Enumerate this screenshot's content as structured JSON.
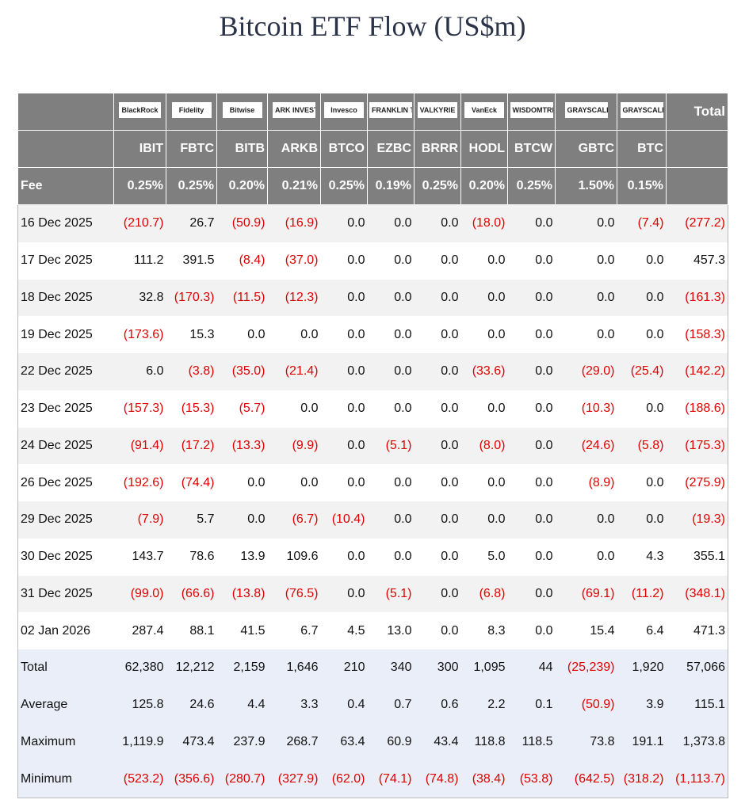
{
  "title": "Bitcoin ETF Flow (US$m)",
  "table": {
    "logos": [
      "BlackRock",
      "Fidelity",
      "Bitwise",
      "ARK INVEST",
      "Invesco",
      "FRANKLIN TEMPLETON",
      "VALKYRIE",
      "VanEck",
      "WISDOMTREE",
      "GRAYSCALE",
      "GRAYSCALE"
    ],
    "total_header": "Total",
    "tickers": [
      "IBIT",
      "FBTC",
      "BITB",
      "ARKB",
      "BTCO",
      "EZBC",
      "BRRR",
      "HODL",
      "BTCW",
      "GBTC",
      "BTC"
    ],
    "fee_label": "Fee",
    "fees": [
      "0.25%",
      "0.25%",
      "0.20%",
      "0.21%",
      "0.25%",
      "0.19%",
      "0.25%",
      "0.20%",
      "0.25%",
      "1.50%",
      "0.15%"
    ],
    "rows": [
      [
        "16 Dec 2025",
        "(210.7)",
        "26.7",
        "(50.9)",
        "(16.9)",
        "0.0",
        "0.0",
        "0.0",
        "(18.0)",
        "0.0",
        "0.0",
        "(7.4)",
        "(277.2)"
      ],
      [
        "17 Dec 2025",
        "111.2",
        "391.5",
        "(8.4)",
        "(37.0)",
        "0.0",
        "0.0",
        "0.0",
        "0.0",
        "0.0",
        "0.0",
        "0.0",
        "457.3"
      ],
      [
        "18 Dec 2025",
        "32.8",
        "(170.3)",
        "(11.5)",
        "(12.3)",
        "0.0",
        "0.0",
        "0.0",
        "0.0",
        "0.0",
        "0.0",
        "0.0",
        "(161.3)"
      ],
      [
        "19 Dec 2025",
        "(173.6)",
        "15.3",
        "0.0",
        "0.0",
        "0.0",
        "0.0",
        "0.0",
        "0.0",
        "0.0",
        "0.0",
        "0.0",
        "(158.3)"
      ],
      [
        "22 Dec 2025",
        "6.0",
        "(3.8)",
        "(35.0)",
        "(21.4)",
        "0.0",
        "0.0",
        "0.0",
        "(33.6)",
        "0.0",
        "(29.0)",
        "(25.4)",
        "(142.2)"
      ],
      [
        "23 Dec 2025",
        "(157.3)",
        "(15.3)",
        "(5.7)",
        "0.0",
        "0.0",
        "0.0",
        "0.0",
        "0.0",
        "0.0",
        "(10.3)",
        "0.0",
        "(188.6)"
      ],
      [
        "24 Dec 2025",
        "(91.4)",
        "(17.2)",
        "(13.3)",
        "(9.9)",
        "0.0",
        "(5.1)",
        "0.0",
        "(8.0)",
        "0.0",
        "(24.6)",
        "(5.8)",
        "(175.3)"
      ],
      [
        "26 Dec 2025",
        "(192.6)",
        "(74.4)",
        "0.0",
        "0.0",
        "0.0",
        "0.0",
        "0.0",
        "0.0",
        "0.0",
        "(8.9)",
        "0.0",
        "(275.9)"
      ],
      [
        "29 Dec 2025",
        "(7.9)",
        "5.7",
        "0.0",
        "(6.7)",
        "(10.4)",
        "0.0",
        "0.0",
        "0.0",
        "0.0",
        "0.0",
        "0.0",
        "(19.3)"
      ],
      [
        "30 Dec 2025",
        "143.7",
        "78.6",
        "13.9",
        "109.6",
        "0.0",
        "0.0",
        "0.0",
        "5.0",
        "0.0",
        "0.0",
        "4.3",
        "355.1"
      ],
      [
        "31 Dec 2025",
        "(99.0)",
        "(66.6)",
        "(13.8)",
        "(76.5)",
        "0.0",
        "(5.1)",
        "0.0",
        "(6.8)",
        "0.0",
        "(69.1)",
        "(11.2)",
        "(348.1)"
      ],
      [
        "02 Jan 2026",
        "287.4",
        "88.1",
        "41.5",
        "6.7",
        "4.5",
        "13.0",
        "0.0",
        "8.3",
        "0.0",
        "15.4",
        "6.4",
        "471.3"
      ]
    ],
    "summary": [
      [
        "Total",
        "62,380",
        "12,212",
        "2,159",
        "1,646",
        "210",
        "340",
        "300",
        "1,095",
        "44",
        "(25,239)",
        "1,920",
        "57,066"
      ],
      [
        "Average",
        "125.8",
        "24.6",
        "4.4",
        "3.3",
        "0.4",
        "0.7",
        "0.6",
        "2.2",
        "0.1",
        "(50.9)",
        "3.9",
        "115.1"
      ],
      [
        "Maximum",
        "1,119.9",
        "473.4",
        "237.9",
        "268.7",
        "63.4",
        "60.9",
        "43.4",
        "118.8",
        "118.5",
        "73.8",
        "191.1",
        "1,373.8"
      ],
      [
        "Minimum",
        "(523.2)",
        "(356.6)",
        "(280.7)",
        "(327.9)",
        "(62.0)",
        "(74.1)",
        "(74.8)",
        "(38.4)",
        "(53.8)",
        "(642.5)",
        "(318.2)",
        "(1,113.7)"
      ]
    ]
  }
}
